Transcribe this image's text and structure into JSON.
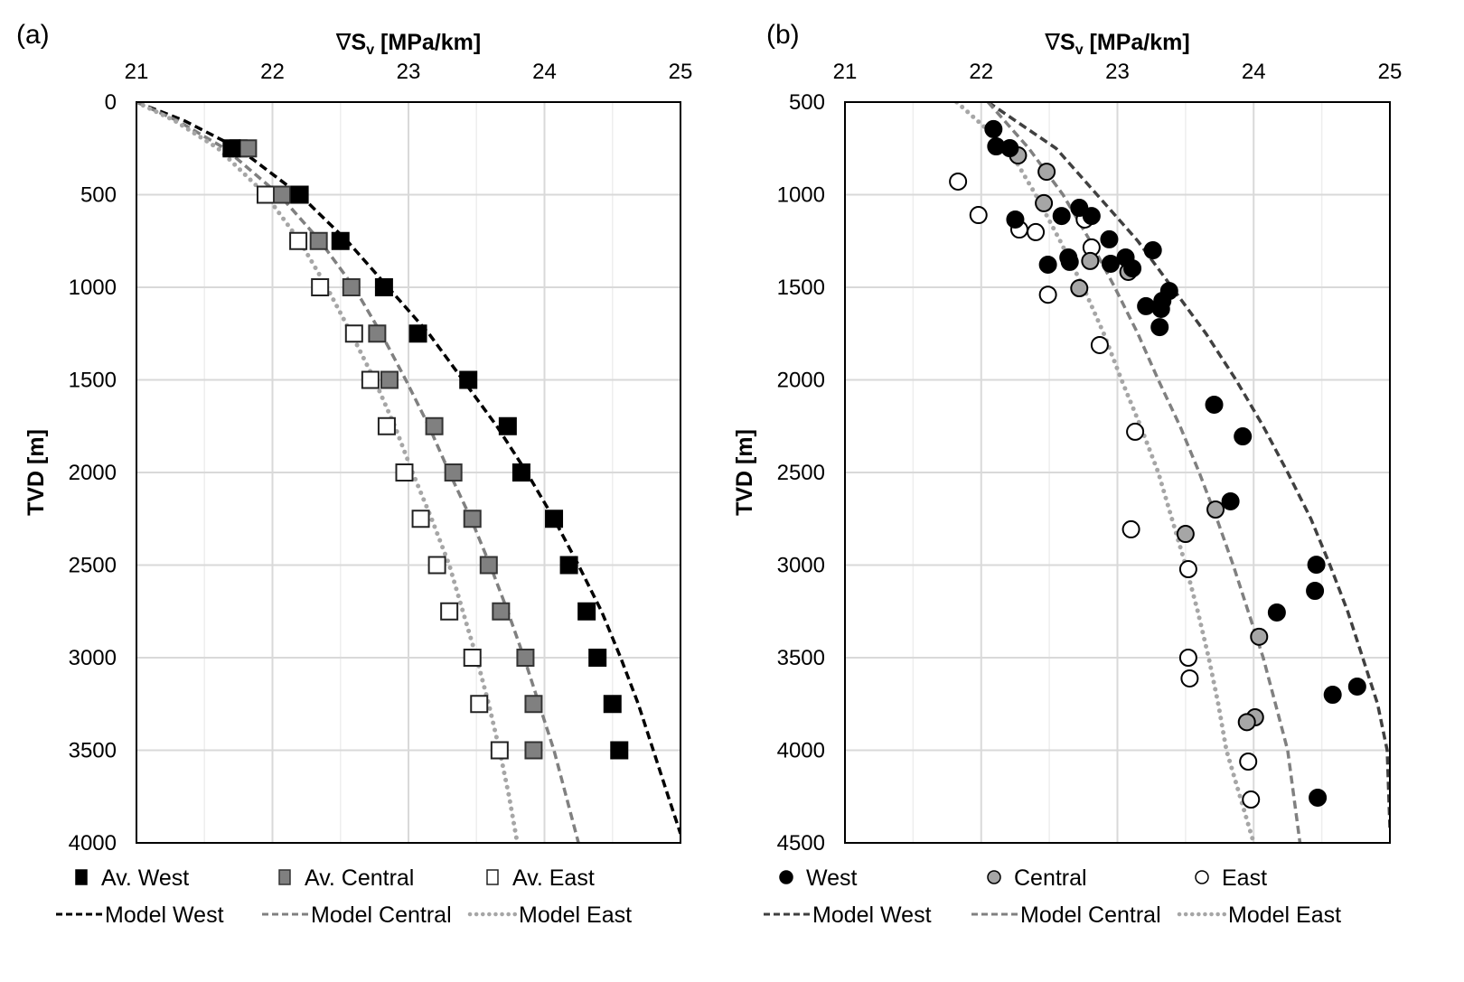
{
  "chart_data": [
    {
      "panel": "(a)",
      "type": "scatter",
      "title": "",
      "xlabel": "∇Sv [MPa/km]",
      "ylabel": "TVD [m]",
      "x_axis_position": "top",
      "y_inverted": true,
      "xlim": [
        21,
        25
      ],
      "ylim": [
        0,
        4000
      ],
      "xticks": [
        21,
        22,
        23,
        24,
        25
      ],
      "yticks": [
        0,
        500,
        1000,
        1500,
        2000,
        2500,
        3000,
        3500,
        4000
      ],
      "x_minor_gridlines": [
        21.5,
        22.5,
        23.5,
        24.5
      ],
      "grid": true,
      "legend_position": "bottom",
      "series": [
        {
          "name": "Av. West",
          "kind": "marker",
          "marker": "square",
          "fill": "#000000",
          "stroke": "#000000",
          "points": [
            [
              21.7,
              250
            ],
            [
              22.2,
              500
            ],
            [
              22.5,
              750
            ],
            [
              22.82,
              1000
            ],
            [
              23.07,
              1250
            ],
            [
              23.44,
              1500
            ],
            [
              23.73,
              1750
            ],
            [
              23.83,
              2000
            ],
            [
              24.07,
              2250
            ],
            [
              24.18,
              2500
            ],
            [
              24.31,
              2750
            ],
            [
              24.39,
              3000
            ],
            [
              24.5,
              3250
            ],
            [
              24.55,
              3500
            ]
          ]
        },
        {
          "name": "Av. Central",
          "kind": "marker",
          "marker": "square",
          "fill": "#808080",
          "stroke": "#333333",
          "points": [
            [
              21.82,
              250
            ],
            [
              22.07,
              500
            ],
            [
              22.34,
              750
            ],
            [
              22.58,
              1000
            ],
            [
              22.77,
              1250
            ],
            [
              22.86,
              1500
            ],
            [
              23.19,
              1750
            ],
            [
              23.33,
              2000
            ],
            [
              23.47,
              2250
            ],
            [
              23.59,
              2500
            ],
            [
              23.68,
              2750
            ],
            [
              23.86,
              3000
            ],
            [
              23.92,
              3250
            ],
            [
              23.92,
              3500
            ]
          ]
        },
        {
          "name": "Av. East",
          "kind": "marker",
          "marker": "square",
          "fill": "#ffffff",
          "stroke": "#222222",
          "points": [
            [
              21.75,
              250
            ],
            [
              21.95,
              500
            ],
            [
              22.19,
              750
            ],
            [
              22.35,
              1000
            ],
            [
              22.6,
              1250
            ],
            [
              22.72,
              1500
            ],
            [
              22.84,
              1750
            ],
            [
              22.97,
              2000
            ],
            [
              23.09,
              2250
            ],
            [
              23.21,
              2500
            ],
            [
              23.3,
              2750
            ],
            [
              23.47,
              3000
            ],
            [
              23.52,
              3250
            ],
            [
              23.67,
              3500
            ]
          ]
        },
        {
          "name": "Model West",
          "kind": "line",
          "dash": "dashed",
          "color": "#000000",
          "points": [
            [
              21,
              0
            ],
            [
              21.35,
              100
            ],
            [
              21.75,
              250
            ],
            [
              22.2,
              500
            ],
            [
              22.55,
              750
            ],
            [
              22.85,
              1000
            ],
            [
              23.15,
              1250
            ],
            [
              23.4,
              1500
            ],
            [
              23.65,
              1750
            ],
            [
              23.87,
              2000
            ],
            [
              24.07,
              2250
            ],
            [
              24.25,
              2500
            ],
            [
              24.42,
              2750
            ],
            [
              24.56,
              3000
            ],
            [
              24.69,
              3250
            ],
            [
              24.8,
              3500
            ],
            [
              24.91,
              3750
            ],
            [
              25,
              3950
            ]
          ]
        },
        {
          "name": "Model Central",
          "kind": "line",
          "dash": "dashed",
          "color": "#808080",
          "points": [
            [
              21,
              0
            ],
            [
              21.3,
              100
            ],
            [
              21.65,
              250
            ],
            [
              22.05,
              500
            ],
            [
              22.35,
              750
            ],
            [
              22.6,
              1000
            ],
            [
              22.8,
              1250
            ],
            [
              22.98,
              1500
            ],
            [
              23.15,
              1750
            ],
            [
              23.3,
              2000
            ],
            [
              23.46,
              2250
            ],
            [
              23.6,
              2500
            ],
            [
              23.73,
              2750
            ],
            [
              23.85,
              3000
            ],
            [
              23.96,
              3250
            ],
            [
              24.07,
              3500
            ],
            [
              24.16,
              3750
            ],
            [
              24.25,
              4000
            ]
          ]
        },
        {
          "name": "Model East",
          "kind": "line",
          "dash": "dotted",
          "color": "#a6a6a6",
          "points": [
            [
              21,
              0
            ],
            [
              21.28,
              100
            ],
            [
              21.6,
              250
            ],
            [
              21.95,
              500
            ],
            [
              22.2,
              750
            ],
            [
              22.4,
              1000
            ],
            [
              22.58,
              1250
            ],
            [
              22.75,
              1500
            ],
            [
              22.9,
              1750
            ],
            [
              23.03,
              2000
            ],
            [
              23.17,
              2250
            ],
            [
              23.3,
              2500
            ],
            [
              23.4,
              2750
            ],
            [
              23.5,
              3000
            ],
            [
              23.59,
              3250
            ],
            [
              23.67,
              3500
            ],
            [
              23.74,
              3750
            ],
            [
              23.8,
              4000
            ]
          ]
        }
      ]
    },
    {
      "panel": "(b)",
      "type": "scatter",
      "title": "",
      "xlabel": "∇Sv [MPa/km]",
      "ylabel": "TVD [m]",
      "x_axis_position": "top",
      "y_inverted": true,
      "xlim": [
        21,
        25
      ],
      "ylim": [
        500,
        4500
      ],
      "xticks": [
        21,
        22,
        23,
        24,
        25
      ],
      "yticks": [
        500,
        1000,
        1500,
        2000,
        2500,
        3000,
        3500,
        4000,
        4500
      ],
      "x_minor_gridlines": [
        21.5,
        22.5,
        23.5,
        24.5
      ],
      "grid": true,
      "legend_position": "bottom",
      "series": [
        {
          "name": "West",
          "kind": "marker",
          "marker": "circle",
          "fill": "#000000",
          "stroke": "#000000",
          "points": [
            [
              22.09,
              646
            ],
            [
              22.11,
              739
            ],
            [
              22.21,
              749
            ],
            [
              22.25,
              1134
            ],
            [
              22.59,
              1115
            ],
            [
              22.72,
              1071
            ],
            [
              22.81,
              1115
            ],
            [
              22.49,
              1378
            ],
            [
              22.64,
              1339
            ],
            [
              22.65,
              1363
            ],
            [
              22.94,
              1241
            ],
            [
              22.95,
              1373
            ],
            [
              23.06,
              1339
            ],
            [
              23.11,
              1398
            ],
            [
              23.26,
              1300
            ],
            [
              23.21,
              1602
            ],
            [
              23.32,
              1617
            ],
            [
              23.33,
              1573
            ],
            [
              23.38,
              1520
            ],
            [
              23.31,
              1715
            ],
            [
              23.71,
              2134
            ],
            [
              23.92,
              2305
            ],
            [
              23.83,
              2656
            ],
            [
              24.46,
              2998
            ],
            [
              24.45,
              3139
            ],
            [
              24.17,
              3256
            ],
            [
              24.76,
              3656
            ],
            [
              24.58,
              3700
            ],
            [
              24.47,
              4256
            ]
          ]
        },
        {
          "name": "Central",
          "kind": "marker",
          "marker": "circle",
          "fill": "#a6a6a6",
          "stroke": "#000000",
          "points": [
            [
              22.27,
              788
            ],
            [
              22.48,
              876
            ],
            [
              22.46,
              1046
            ],
            [
              22.72,
              1505
            ],
            [
              22.8,
              1358
            ],
            [
              23.08,
              1417
            ],
            [
              23.5,
              2832
            ],
            [
              23.72,
              2700
            ],
            [
              24.04,
              3387
            ],
            [
              24.01,
              3822
            ],
            [
              23.95,
              3848
            ]
          ]
        },
        {
          "name": "East",
          "kind": "marker",
          "marker": "circle",
          "fill": "#ffffff",
          "stroke": "#000000",
          "points": [
            [
              21.83,
              929
            ],
            [
              21.98,
              1110
            ],
            [
              22.28,
              1188
            ],
            [
              22.4,
              1202
            ],
            [
              22.49,
              1540
            ],
            [
              22.76,
              1134
            ],
            [
              22.81,
              1285
            ],
            [
              22.87,
              1812
            ],
            [
              23.13,
              2280
            ],
            [
              23.1,
              2807
            ],
            [
              23.52,
              3022
            ],
            [
              23.52,
              3500
            ],
            [
              23.53,
              3612
            ],
            [
              23.96,
              4061
            ],
            [
              23.98,
              4266
            ]
          ]
        },
        {
          "name": "Model West",
          "kind": "line",
          "dash": "dashed",
          "color": "#404040",
          "points": [
            [
              22.05,
              500
            ],
            [
              22.55,
              750
            ],
            [
              22.85,
              1000
            ],
            [
              23.15,
              1250
            ],
            [
              23.4,
              1500
            ],
            [
              23.65,
              1750
            ],
            [
              23.87,
              2000
            ],
            [
              24.07,
              2250
            ],
            [
              24.25,
              2500
            ],
            [
              24.42,
              2750
            ],
            [
              24.56,
              3000
            ],
            [
              24.69,
              3250
            ],
            [
              24.8,
              3500
            ],
            [
              24.91,
              3750
            ],
            [
              24.98,
              4000
            ],
            [
              25,
              4420
            ]
          ]
        },
        {
          "name": "Model Central",
          "kind": "line",
          "dash": "dashed",
          "color": "#808080",
          "points": [
            [
              22.05,
              500
            ],
            [
              22.35,
              750
            ],
            [
              22.6,
              1000
            ],
            [
              22.8,
              1250
            ],
            [
              22.98,
              1500
            ],
            [
              23.15,
              1750
            ],
            [
              23.3,
              2000
            ],
            [
              23.46,
              2250
            ],
            [
              23.6,
              2500
            ],
            [
              23.73,
              2750
            ],
            [
              23.85,
              3000
            ],
            [
              23.96,
              3250
            ],
            [
              24.07,
              3500
            ],
            [
              24.16,
              3750
            ],
            [
              24.25,
              4000
            ],
            [
              24.34,
              4500
            ]
          ]
        },
        {
          "name": "Model East",
          "kind": "line",
          "dash": "dotted",
          "color": "#a6a6a6",
          "points": [
            [
              21.82,
              500
            ],
            [
              22.2,
              750
            ],
            [
              22.4,
              1000
            ],
            [
              22.58,
              1250
            ],
            [
              22.75,
              1500
            ],
            [
              22.9,
              1750
            ],
            [
              23.03,
              2000
            ],
            [
              23.17,
              2250
            ],
            [
              23.3,
              2500
            ],
            [
              23.4,
              2750
            ],
            [
              23.5,
              3000
            ],
            [
              23.59,
              3250
            ],
            [
              23.67,
              3500
            ],
            [
              23.74,
              3750
            ],
            [
              23.8,
              4000
            ],
            [
              24.0,
              4500
            ]
          ]
        }
      ]
    }
  ]
}
